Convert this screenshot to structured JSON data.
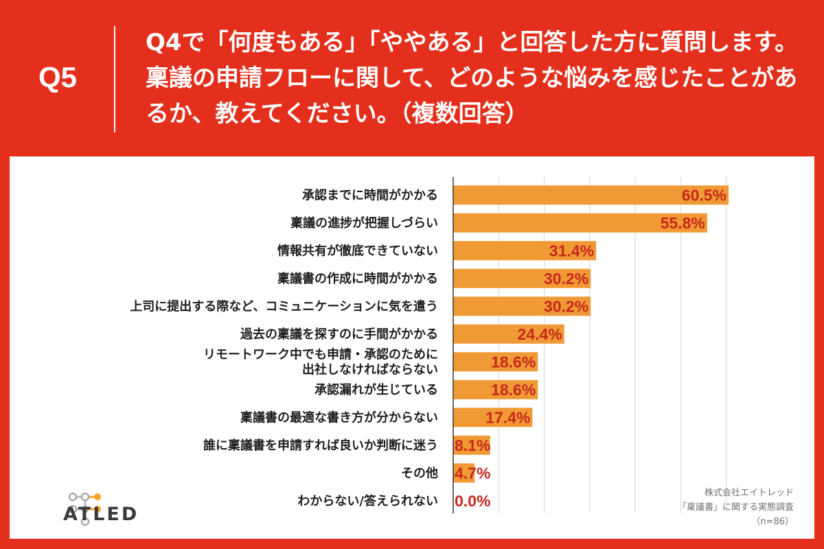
{
  "header": {
    "q_number": "Q5",
    "question": "Q4で「何度もある」「ややある」と回答した方に質問します。稟議の申請フローに関して、どのような悩みを感じたことがあるか、教えてください。（複数回答）"
  },
  "logo": {
    "text": "ATLED",
    "icon": "molecule-logo-icon"
  },
  "credit": {
    "company": "株式会社エイトレッド",
    "survey": "「稟議書」に関する実態調査",
    "sample": "（n=86）"
  },
  "colors": {
    "background": "#e42f1c",
    "bar": "#f09a36",
    "value_label": "#c8281c",
    "grid": "#d6d6d6"
  },
  "chart_data": {
    "type": "bar",
    "orientation": "horizontal",
    "categories": [
      "承認までに時間がかかる",
      "稟議の進捗が把握しづらい",
      "情報共有が徹底できていない",
      "稟議書の作成に時間がかかる",
      "上司に提出する際など、コミュニケーションに気を遣う",
      "過去の稟議を探すのに手間がかかる",
      "リモートワーク中でも申請・承認のために\n出社しなければならない",
      "承認漏れが生じている",
      "稟議書の最適な書き方が分からない",
      "誰に稟議書を申請すれば良いか判断に迷う",
      "その他",
      "わからない/答えられない"
    ],
    "values": [
      60.5,
      55.8,
      31.4,
      30.2,
      30.2,
      24.4,
      18.6,
      18.6,
      17.4,
      8.1,
      4.7,
      0.0
    ],
    "value_labels": [
      "60.5%",
      "55.8%",
      "31.4%",
      "30.2%",
      "30.2%",
      "24.4%",
      "18.6%",
      "18.6%",
      "17.4%",
      "8.1%",
      "4.7%",
      "0.0%"
    ],
    "xlim": [
      0,
      70
    ],
    "grid": true,
    "title": "",
    "xlabel": "",
    "ylabel": ""
  }
}
